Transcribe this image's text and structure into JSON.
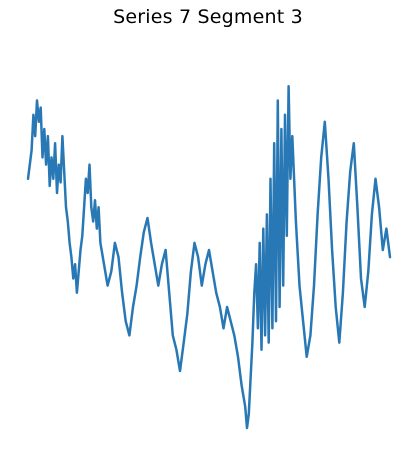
{
  "chart_data": {
    "type": "line",
    "title": "Series 7 Segment 3",
    "xlabel": "",
    "ylabel": "",
    "axes_visible": false,
    "grid": false,
    "legend": "none",
    "ylim": [
      0,
      100
    ],
    "series": [
      {
        "color": "#2878b5",
        "points": [
          [
            0,
            70
          ],
          [
            1,
            78
          ],
          [
            1.5,
            88
          ],
          [
            2,
            82
          ],
          [
            2.5,
            92
          ],
          [
            3,
            86
          ],
          [
            3.5,
            90
          ],
          [
            4,
            76
          ],
          [
            4.5,
            84
          ],
          [
            5,
            74
          ],
          [
            5.5,
            82
          ],
          [
            6,
            68
          ],
          [
            6.5,
            76
          ],
          [
            7,
            70
          ],
          [
            7.5,
            80
          ],
          [
            8,
            66
          ],
          [
            8.5,
            74
          ],
          [
            9,
            69
          ],
          [
            9.5,
            82
          ],
          [
            10,
            72
          ],
          [
            10.5,
            62
          ],
          [
            11,
            58
          ],
          [
            11.5,
            52
          ],
          [
            12,
            48
          ],
          [
            12.5,
            42
          ],
          [
            13,
            46
          ],
          [
            13.5,
            38
          ],
          [
            14,
            44
          ],
          [
            14.5,
            50
          ],
          [
            15,
            54
          ],
          [
            15.5,
            62
          ],
          [
            16,
            70
          ],
          [
            16.5,
            66
          ],
          [
            17,
            74
          ],
          [
            17.5,
            62
          ],
          [
            18,
            58
          ],
          [
            18.5,
            64
          ],
          [
            19,
            56
          ],
          [
            19.5,
            62
          ],
          [
            20,
            52
          ],
          [
            21,
            46
          ],
          [
            22,
            40
          ],
          [
            23,
            44
          ],
          [
            24,
            52
          ],
          [
            25,
            48
          ],
          [
            26,
            38
          ],
          [
            27,
            30
          ],
          [
            28,
            26
          ],
          [
            29,
            34
          ],
          [
            30,
            40
          ],
          [
            31,
            48
          ],
          [
            32,
            55
          ],
          [
            33,
            59
          ],
          [
            34,
            52
          ],
          [
            35,
            46
          ],
          [
            36,
            40
          ],
          [
            37,
            46
          ],
          [
            38,
            50
          ],
          [
            39,
            38
          ],
          [
            40,
            26
          ],
          [
            41,
            22
          ],
          [
            42,
            16
          ],
          [
            43,
            24
          ],
          [
            44,
            32
          ],
          [
            45,
            44
          ],
          [
            46,
            52
          ],
          [
            47,
            48
          ],
          [
            48,
            40
          ],
          [
            49,
            46
          ],
          [
            50,
            50
          ],
          [
            51,
            44
          ],
          [
            52,
            38
          ],
          [
            53,
            34
          ],
          [
            54,
            28
          ],
          [
            55,
            34
          ],
          [
            56,
            30
          ],
          [
            57,
            26
          ],
          [
            58,
            20
          ],
          [
            59,
            12
          ],
          [
            60,
            6
          ],
          [
            60.5,
            0
          ],
          [
            61,
            4
          ],
          [
            61.5,
            14
          ],
          [
            62,
            24
          ],
          [
            62.5,
            38
          ],
          [
            63,
            46
          ],
          [
            63.5,
            28
          ],
          [
            64,
            52
          ],
          [
            64.5,
            22
          ],
          [
            65,
            56
          ],
          [
            65.5,
            26
          ],
          [
            66,
            60
          ],
          [
            66.5,
            24
          ],
          [
            67,
            70
          ],
          [
            67.5,
            28
          ],
          [
            68,
            80
          ],
          [
            68.5,
            30
          ],
          [
            69,
            92
          ],
          [
            69.5,
            34
          ],
          [
            70,
            84
          ],
          [
            70.5,
            40
          ],
          [
            71,
            88
          ],
          [
            71.5,
            54
          ],
          [
            72,
            96
          ],
          [
            72.5,
            70
          ],
          [
            73,
            82
          ],
          [
            74,
            58
          ],
          [
            75,
            40
          ],
          [
            76,
            30
          ],
          [
            77,
            20
          ],
          [
            78,
            26
          ],
          [
            79,
            40
          ],
          [
            80,
            60
          ],
          [
            81,
            76
          ],
          [
            82,
            86
          ],
          [
            83,
            70
          ],
          [
            84,
            50
          ],
          [
            85,
            34
          ],
          [
            86,
            24
          ],
          [
            87,
            38
          ],
          [
            88,
            58
          ],
          [
            89,
            72
          ],
          [
            90,
            80
          ],
          [
            91,
            62
          ],
          [
            92,
            42
          ],
          [
            93,
            34
          ],
          [
            94,
            44
          ],
          [
            95,
            60
          ],
          [
            96,
            70
          ],
          [
            97,
            62
          ],
          [
            98,
            50
          ],
          [
            99,
            56
          ],
          [
            100,
            48
          ]
        ]
      }
    ]
  }
}
